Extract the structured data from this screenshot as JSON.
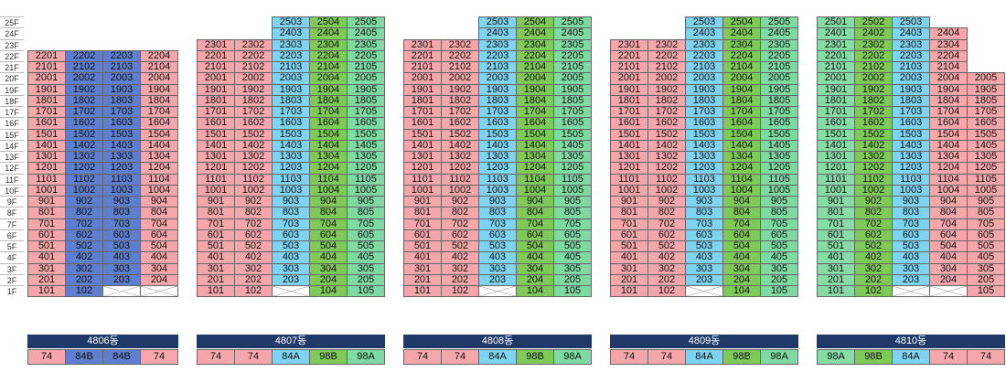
{
  "floors": [
    "25F",
    "24F",
    "23F",
    "22F",
    "21F",
    "20F",
    "19F",
    "18F",
    "17F",
    "16F",
    "15F",
    "14F",
    "13F",
    "12F",
    "11F",
    "10F",
    "9F",
    "8F",
    "7F",
    "6F",
    "5F",
    "4F",
    "3F",
    "2F",
    "1F"
  ],
  "colors": {
    "74": "#f4a6ab",
    "84B": "#5e7fcf",
    "84A": "#7dd3f0",
    "98B": "#7ec957",
    "98A": "#7ed9a3",
    "98A_alt": "#86dba6",
    "outline": "#666666",
    "bar": "#1f3a68"
  },
  "buildings": [
    {
      "name": "4806동",
      "columns": [
        {
          "line": "01",
          "type": "74",
          "top": 22,
          "empty_floors": []
        },
        {
          "line": "02",
          "type": "84B",
          "top": 22,
          "empty_floors": []
        },
        {
          "line": "03",
          "type": "84B",
          "top": 22,
          "empty_floors": [
            1
          ]
        },
        {
          "line": "04",
          "type": "74",
          "top": 22,
          "empty_floors": [
            1
          ]
        }
      ]
    },
    {
      "name": "4807동",
      "columns": [
        {
          "line": "01",
          "type": "74",
          "top": 23,
          "empty_floors": []
        },
        {
          "line": "02",
          "type": "74",
          "top": 23,
          "empty_floors": []
        },
        {
          "line": "03",
          "type": "84A",
          "top": 25,
          "empty_floors": [
            1
          ]
        },
        {
          "line": "04",
          "type": "98B",
          "top": 25,
          "empty_floors": []
        },
        {
          "line": "05",
          "type": "98A",
          "top": 25,
          "empty_floors": []
        }
      ]
    },
    {
      "name": "4808동",
      "columns": [
        {
          "line": "01",
          "type": "74",
          "top": 23,
          "empty_floors": []
        },
        {
          "line": "02",
          "type": "74",
          "top": 23,
          "empty_floors": []
        },
        {
          "line": "03",
          "type": "84A",
          "top": 25,
          "empty_floors": [
            1
          ]
        },
        {
          "line": "04",
          "type": "98B",
          "top": 25,
          "empty_floors": []
        },
        {
          "line": "05",
          "type": "98A",
          "top": 25,
          "empty_floors": []
        }
      ]
    },
    {
      "name": "4809동",
      "columns": [
        {
          "line": "01",
          "type": "74",
          "top": 23,
          "empty_floors": []
        },
        {
          "line": "02",
          "type": "74",
          "top": 23,
          "empty_floors": []
        },
        {
          "line": "03",
          "type": "84A",
          "top": 25,
          "empty_floors": [
            1
          ]
        },
        {
          "line": "04",
          "type": "98B",
          "top": 25,
          "empty_floors": []
        },
        {
          "line": "05",
          "type": "98A",
          "top": 25,
          "empty_floors": []
        }
      ]
    },
    {
      "name": "4810동",
      "columns": [
        {
          "line": "01",
          "type": "98A",
          "top": 25,
          "empty_floors": []
        },
        {
          "line": "02",
          "type": "98B",
          "top": 25,
          "empty_floors": []
        },
        {
          "line": "03",
          "type": "84A",
          "top": 25,
          "empty_floors": [
            1
          ]
        },
        {
          "line": "04",
          "type": "74",
          "top": 24,
          "empty_floors": [
            1
          ]
        },
        {
          "line": "05",
          "type": "74",
          "top": 20,
          "empty_floors": []
        }
      ]
    }
  ]
}
